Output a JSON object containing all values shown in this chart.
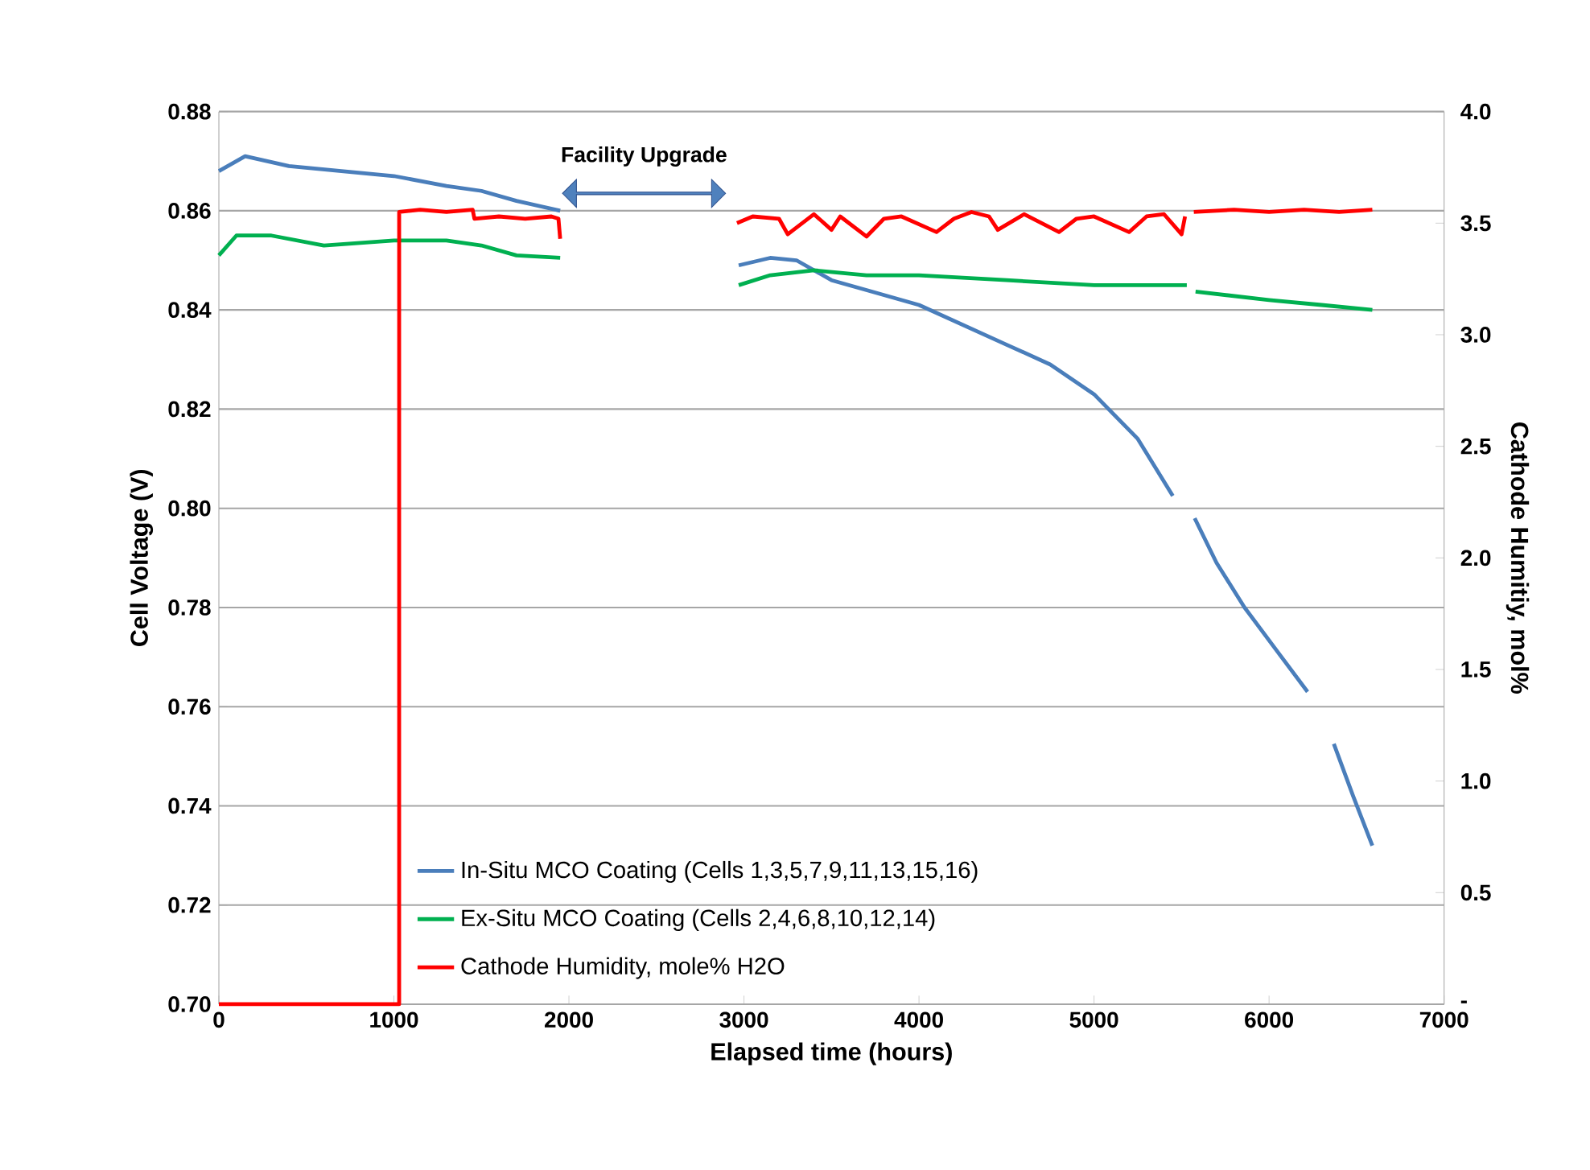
{
  "chart_data": {
    "type": "line",
    "xlabel": "Elapsed time (hours)",
    "ylabel": "Cell Voltage (V)",
    "y2label": "Cathode Humitiy, mol%",
    "annotations": [
      "Facility Upgrade"
    ],
    "xlim": [
      0,
      7000
    ],
    "xticks": [
      0,
      1000,
      2000,
      3000,
      4000,
      5000,
      6000,
      7000
    ],
    "ylim": [
      0.7,
      0.88
    ],
    "yticks": [
      {
        "value": 0.7,
        "label": "0.70"
      },
      {
        "value": 0.72,
        "label": "0.72"
      },
      {
        "value": 0.74,
        "label": "0.74"
      },
      {
        "value": 0.76,
        "label": "0.76"
      },
      {
        "value": 0.78,
        "label": "0.78"
      },
      {
        "value": 0.8,
        "label": "0.80"
      },
      {
        "value": 0.82,
        "label": "0.82"
      },
      {
        "value": 0.84,
        "label": "0.84"
      },
      {
        "value": 0.86,
        "label": "0.86"
      },
      {
        "value": 0.88,
        "label": "0.88"
      }
    ],
    "y2lim": [
      0,
      4
    ],
    "y2ticks": [
      {
        "value": 0,
        "label": "-"
      },
      {
        "value": 0.5,
        "label": "0.5"
      },
      {
        "value": 1,
        "label": "1.0"
      },
      {
        "value": 1.5,
        "label": "1.5"
      },
      {
        "value": 2,
        "label": "2.0"
      },
      {
        "value": 2.5,
        "label": "2.5"
      },
      {
        "value": 3,
        "label": "3.0"
      },
      {
        "value": 3.5,
        "label": "3.5"
      },
      {
        "value": 4,
        "label": "4.0"
      }
    ],
    "grid": "y",
    "legend": "bottom left",
    "series": [
      {
        "name": "In-Situ MCO Coating (Cells 1,3,5,7,9,11,13,15,16)",
        "color": "#4a7ebb",
        "x": [
          0,
          150,
          400,
          700,
          1000,
          1300,
          1500,
          1700,
          1950,
          2000,
          2970,
          3150,
          3300,
          3500,
          3700,
          4000,
          4250,
          4500,
          4750,
          5000,
          5250,
          5450,
          5510,
          5575,
          5700,
          5860,
          6050,
          6220,
          6300,
          6370,
          6480,
          6590
        ],
        "values": [
          0.868,
          0.871,
          0.869,
          0.868,
          0.867,
          0.865,
          0.864,
          0.862,
          0.86,
          null,
          0.849,
          0.8505,
          0.85,
          0.846,
          0.844,
          0.841,
          0.837,
          0.833,
          0.829,
          0.823,
          0.814,
          0.8025,
          null,
          0.798,
          0.789,
          0.78,
          0.771,
          0.763,
          null,
          0.7525,
          0.742,
          0.732
        ]
      },
      {
        "name": "Ex-Situ MCO Coating (Cells 2,4,6,8,10,12,14)",
        "color": "#00b050",
        "x": [
          0,
          100,
          300,
          600,
          1000,
          1300,
          1500,
          1700,
          1950,
          2000,
          2970,
          3150,
          3400,
          3700,
          4000,
          4500,
          5000,
          5530,
          5550,
          5580,
          6000,
          6300,
          6590
        ],
        "values": [
          0.851,
          0.855,
          0.855,
          0.853,
          0.854,
          0.854,
          0.853,
          0.851,
          0.8505,
          null,
          0.845,
          0.847,
          0.848,
          0.847,
          0.847,
          0.846,
          0.845,
          0.845,
          null,
          0.8437,
          0.842,
          0.841,
          0.84
        ]
      },
      {
        "name": "Cathode Humidity, mole% H2O",
        "color": "#ff0000",
        "axis": "y2",
        "x": [
          0,
          1030,
          1030,
          1150,
          1300,
          1450,
          1460,
          1600,
          1750,
          1900,
          1940,
          1950,
          2000,
          2960,
          3050,
          3200,
          3250,
          3400,
          3500,
          3550,
          3700,
          3800,
          3900,
          4100,
          4200,
          4300,
          4400,
          4450,
          4600,
          4800,
          4900,
          5000,
          5200,
          5300,
          5400,
          5500,
          5520,
          5540,
          5570,
          5800,
          6000,
          6200,
          6400,
          6590
        ],
        "values": [
          0,
          0,
          3.55,
          3.56,
          3.55,
          3.56,
          3.52,
          3.53,
          3.52,
          3.53,
          3.52,
          3.43,
          null,
          3.5,
          3.53,
          3.52,
          3.45,
          3.54,
          3.47,
          3.53,
          3.44,
          3.52,
          3.53,
          3.46,
          3.52,
          3.55,
          3.53,
          3.47,
          3.54,
          3.46,
          3.52,
          3.53,
          3.46,
          3.53,
          3.54,
          3.45,
          3.53,
          null,
          3.55,
          3.56,
          3.55,
          3.56,
          3.55,
          3.56
        ]
      }
    ]
  }
}
